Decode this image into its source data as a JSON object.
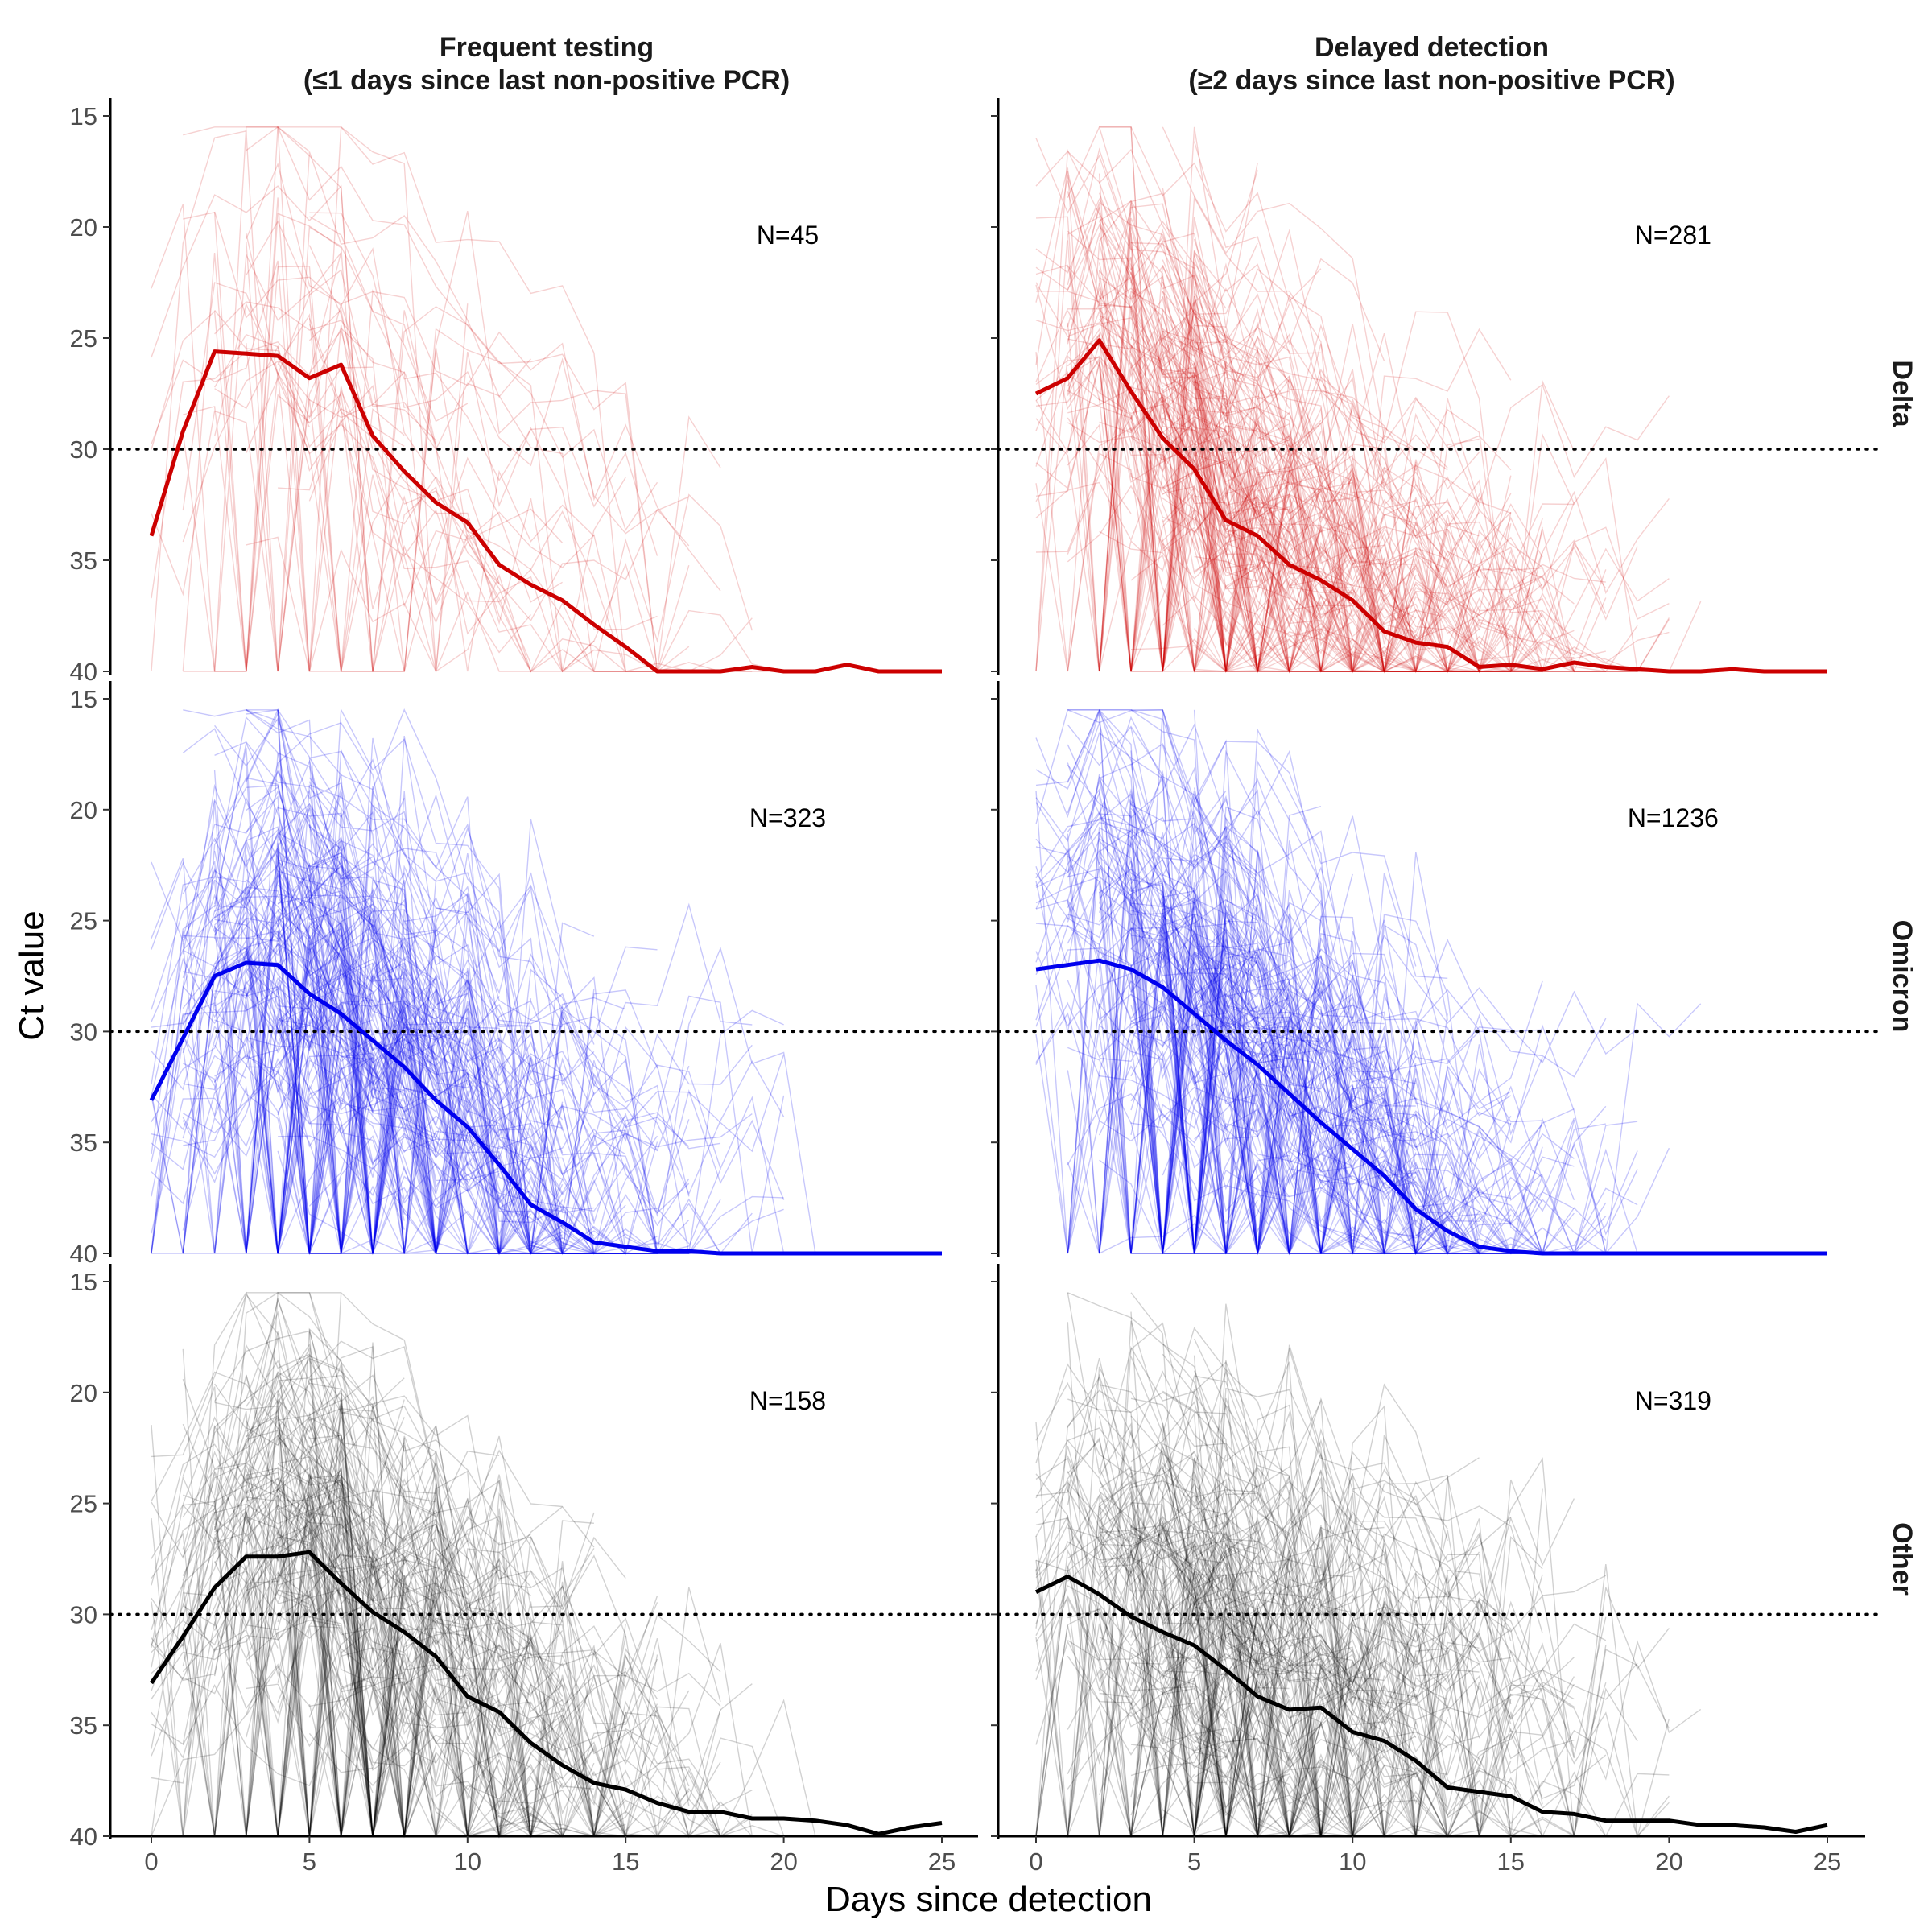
{
  "chart_data": {
    "type": "line",
    "xlabel": "Days since detection",
    "ylabel": "Ct value",
    "x_ticks": [
      0,
      5,
      10,
      15,
      20,
      25
    ],
    "y_ticks": [
      15,
      20,
      25,
      30,
      35,
      40
    ],
    "xlim": [
      0,
      25
    ],
    "ylim": [
      15,
      40
    ],
    "y_reversed": true,
    "reference_line": {
      "y": 30,
      "style": "dotted"
    },
    "columns": [
      {
        "title_line1": "Frequent testing",
        "title_line2": "(≤1 days since last non-positive PCR)"
      },
      {
        "title_line1": "Delayed detection",
        "title_line2": "(≥2 days since last non-positive PCR)"
      }
    ],
    "rows": [
      {
        "label": "Delta",
        "color": "#cc0000"
      },
      {
        "label": "Omicron",
        "color": "#0000ee"
      },
      {
        "label": "Other",
        "color": "#000000"
      }
    ],
    "panels": [
      {
        "row": "Delta",
        "column": "Frequent testing",
        "n_label": "N=45",
        "mean_x": [
          0,
          1,
          2,
          3,
          4,
          5,
          6,
          7,
          8,
          9,
          10,
          11,
          12,
          13,
          14,
          15,
          16,
          17,
          18,
          19,
          20,
          21,
          22,
          23,
          24,
          25
        ],
        "mean_y": [
          33.9,
          29.2,
          25.6,
          25.7,
          25.8,
          26.8,
          26.2,
          29.4,
          31.0,
          32.4,
          33.3,
          35.2,
          36.1,
          36.8,
          37.9,
          38.9,
          40.0,
          40.0,
          40.0,
          39.8,
          40.0,
          40.0,
          39.7,
          40.0,
          40.0,
          40.0
        ]
      },
      {
        "row": "Delta",
        "column": "Delayed detection",
        "n_label": "N=281",
        "mean_x": [
          0,
          1,
          2,
          3,
          4,
          5,
          6,
          7,
          8,
          9,
          10,
          11,
          12,
          13,
          14,
          15,
          16,
          17,
          18,
          19,
          20,
          21,
          22,
          23,
          24,
          25
        ],
        "mean_y": [
          27.5,
          26.8,
          25.1,
          27.4,
          29.5,
          30.9,
          33.2,
          33.9,
          35.2,
          35.9,
          36.8,
          38.2,
          38.7,
          38.9,
          39.8,
          39.7,
          39.9,
          39.6,
          39.8,
          39.9,
          40.0,
          40.0,
          39.9,
          40.0,
          40.0,
          40.0
        ]
      },
      {
        "row": "Omicron",
        "column": "Frequent testing",
        "n_label": "N=323",
        "mean_x": [
          0,
          1,
          2,
          3,
          4,
          5,
          6,
          7,
          8,
          9,
          10,
          11,
          12,
          13,
          14,
          15,
          16,
          17,
          18,
          19,
          20,
          21,
          22,
          23,
          24,
          25
        ],
        "mean_y": [
          33.1,
          30.3,
          27.5,
          26.9,
          27.0,
          28.3,
          29.2,
          30.4,
          31.6,
          33.1,
          34.3,
          36.0,
          37.8,
          38.6,
          39.5,
          39.7,
          39.9,
          39.9,
          40.0,
          40.0,
          40.0,
          40.0,
          40.0,
          40.0,
          40.0,
          40.0
        ]
      },
      {
        "row": "Omicron",
        "column": "Delayed detection",
        "n_label": "N=1236",
        "mean_x": [
          0,
          1,
          2,
          3,
          4,
          5,
          6,
          7,
          8,
          9,
          10,
          11,
          12,
          13,
          14,
          15,
          16,
          17,
          18,
          19,
          20,
          21,
          22,
          23,
          24,
          25
        ],
        "mean_y": [
          27.2,
          27.0,
          26.8,
          27.2,
          28.0,
          29.2,
          30.4,
          31.5,
          32.8,
          34.1,
          35.3,
          36.5,
          38.0,
          39.0,
          39.7,
          39.9,
          40.0,
          40.0,
          40.0,
          40.0,
          40.0,
          40.0,
          40.0,
          40.0,
          40.0,
          40.0
        ]
      },
      {
        "row": "Other",
        "column": "Frequent testing",
        "n_label": "N=158",
        "mean_x": [
          0,
          1,
          2,
          3,
          4,
          5,
          6,
          7,
          8,
          9,
          10,
          11,
          12,
          13,
          14,
          15,
          16,
          17,
          18,
          19,
          20,
          21,
          22,
          23,
          24,
          25
        ],
        "mean_y": [
          33.1,
          31.0,
          28.8,
          27.4,
          27.4,
          27.2,
          28.6,
          29.9,
          30.8,
          31.9,
          33.7,
          34.4,
          35.8,
          36.8,
          37.6,
          37.9,
          38.5,
          38.9,
          38.9,
          39.2,
          39.2,
          39.3,
          39.5,
          39.9,
          39.6,
          39.4
        ]
      },
      {
        "row": "Other",
        "column": "Delayed detection",
        "n_label": "N=319",
        "mean_x": [
          0,
          1,
          2,
          3,
          4,
          5,
          6,
          7,
          8,
          9,
          10,
          11,
          12,
          13,
          14,
          15,
          16,
          17,
          18,
          19,
          20,
          21,
          22,
          23,
          24,
          25
        ],
        "mean_y": [
          29.0,
          28.3,
          29.1,
          30.1,
          30.8,
          31.4,
          32.5,
          33.7,
          34.3,
          34.2,
          35.3,
          35.7,
          36.6,
          37.8,
          38.0,
          38.2,
          38.9,
          39.0,
          39.3,
          39.3,
          39.3,
          39.5,
          39.5,
          39.6,
          39.8,
          39.5
        ]
      }
    ]
  }
}
